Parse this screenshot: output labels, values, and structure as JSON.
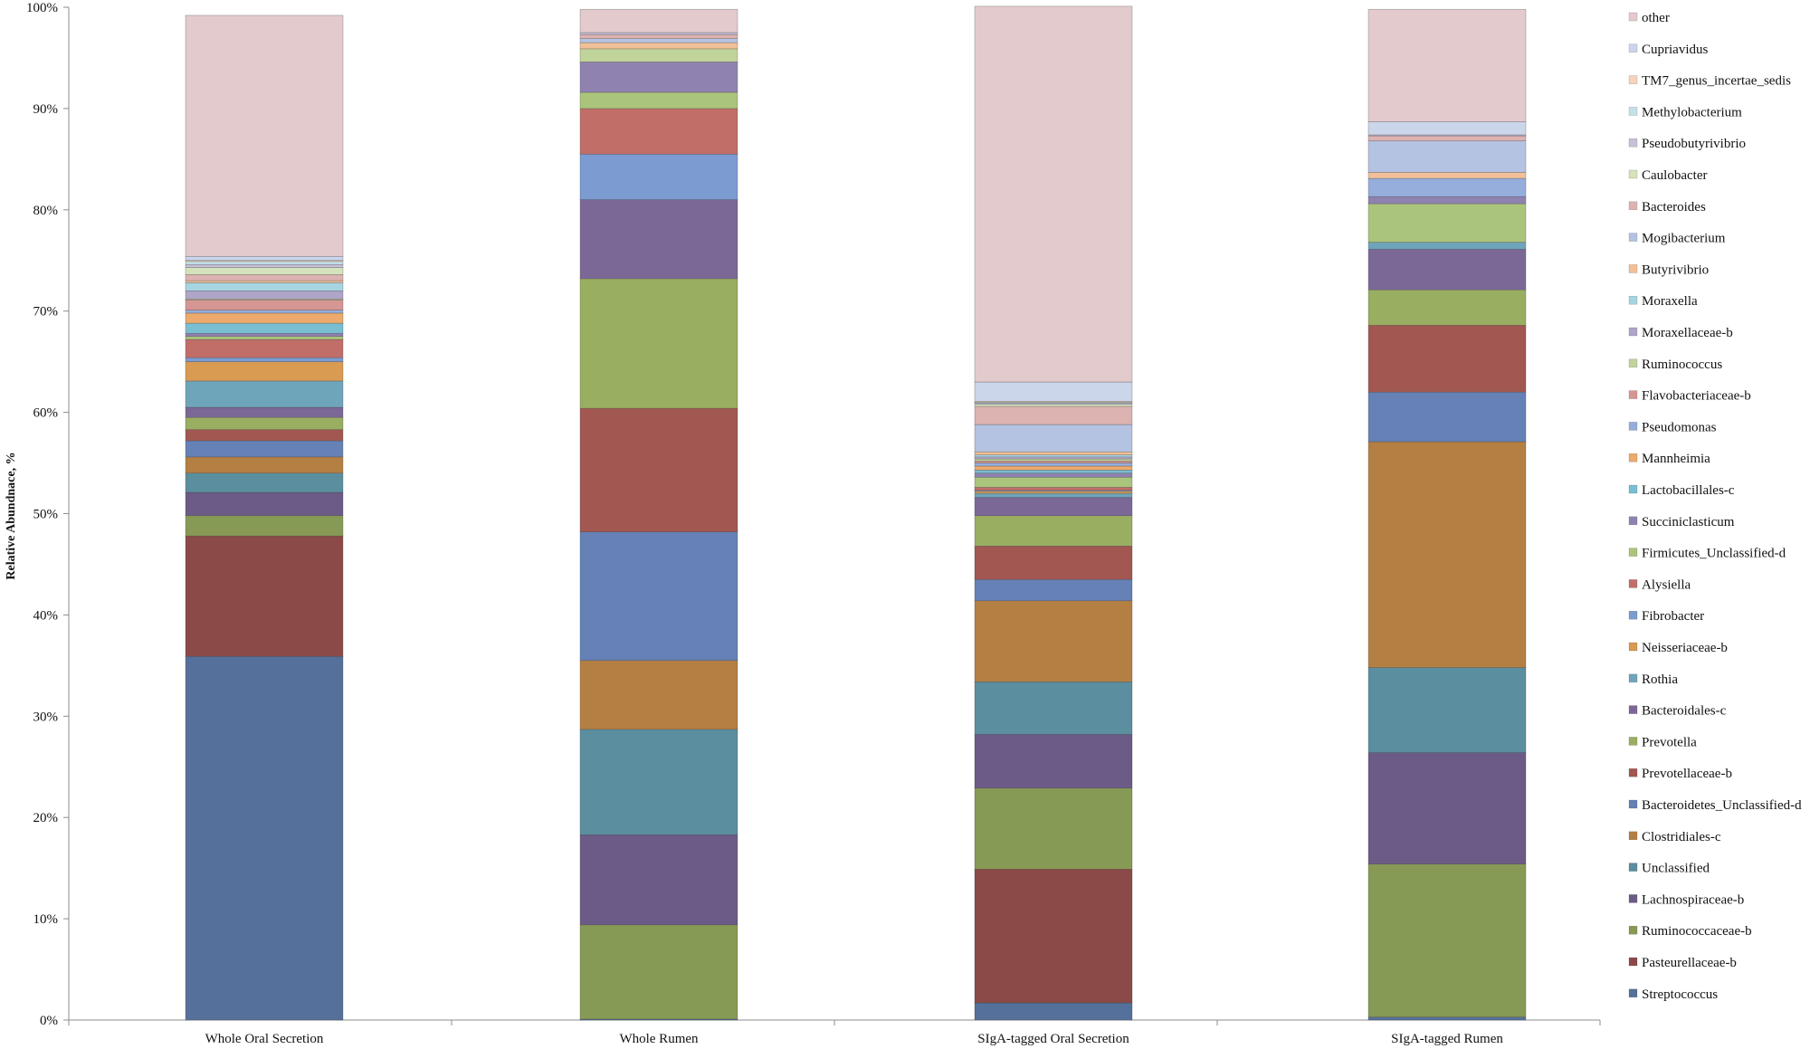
{
  "chart_data": {
    "type": "bar",
    "stacked": true,
    "ylabel": "Relative Abundnace, %",
    "xlabel": "",
    "ylim": [
      0,
      100
    ],
    "y_ticks": [
      "0%",
      "10%",
      "20%",
      "30%",
      "40%",
      "50%",
      "60%",
      "70%",
      "80%",
      "90%",
      "100%"
    ],
    "grid": false,
    "legend_position": "right",
    "categories": [
      "Whole Oral Secretion",
      "Whole Rumen",
      "SIgA-tagged Oral Secretion",
      "SIgA-tagged Rumen"
    ],
    "series": [
      {
        "name": "Streptococcus",
        "color": "#55709a",
        "values": [
          35.9,
          0.1,
          1.7,
          0.3
        ]
      },
      {
        "name": "Pasteurellaceae-b",
        "color": "#8b4a47",
        "values": [
          11.9,
          0.0,
          13.2,
          0.0
        ]
      },
      {
        "name": "Ruminococcaceae-b",
        "color": "#879a55",
        "values": [
          2.0,
          9.3,
          8.0,
          15.1
        ]
      },
      {
        "name": "Lachnospiraceae-b",
        "color": "#6c5b86",
        "values": [
          2.3,
          8.9,
          5.3,
          11.0
        ]
      },
      {
        "name": "Unclassified",
        "color": "#5b8e9e",
        "values": [
          1.9,
          10.4,
          5.2,
          8.4
        ]
      },
      {
        "name": "Clostridiales-c",
        "color": "#b47f43",
        "values": [
          1.6,
          6.8,
          8.0,
          22.3
        ]
      },
      {
        "name": "Bacteroidetes_Unclassified-d",
        "color": "#6581b5",
        "values": [
          1.6,
          12.7,
          2.1,
          4.9
        ]
      },
      {
        "name": "Prevotellaceae-b",
        "color": "#a25751",
        "values": [
          1.1,
          12.2,
          3.3,
          6.6
        ]
      },
      {
        "name": "Prevotella",
        "color": "#9aae62",
        "values": [
          1.2,
          12.8,
          3.0,
          3.5
        ]
      },
      {
        "name": "Bacteroidales-c",
        "color": "#7c6897",
        "values": [
          1.0,
          7.8,
          1.8,
          4.0
        ]
      },
      {
        "name": "Rothia",
        "color": "#6fa5ba",
        "values": [
          2.6,
          0.0,
          0.4,
          0.7
        ]
      },
      {
        "name": "Neisseriaceae-b",
        "color": "#d99a52",
        "values": [
          1.9,
          0.0,
          0.2,
          0.0
        ]
      },
      {
        "name": "Fibrobacter",
        "color": "#7b9bd1",
        "values": [
          0.4,
          4.5,
          0.1,
          0.0
        ]
      },
      {
        "name": "Alysiella",
        "color": "#c16e69",
        "values": [
          1.8,
          4.5,
          0.3,
          0.0
        ]
      },
      {
        "name": "Firmicutes_Unclassified-d",
        "color": "#abc47c",
        "values": [
          0.3,
          1.6,
          1.0,
          3.8
        ]
      },
      {
        "name": "Succiniclasticum",
        "color": "#9082b0",
        "values": [
          0.3,
          3.0,
          0.4,
          0.7
        ]
      },
      {
        "name": "Lactobacillales-c",
        "color": "#79bed1",
        "values": [
          1.0,
          0.0,
          0.3,
          0.0
        ]
      },
      {
        "name": "Mannheimia",
        "color": "#ecaa6c",
        "values": [
          1.0,
          0.0,
          0.4,
          0.0
        ]
      },
      {
        "name": "Pseudomonas",
        "color": "#95aedb",
        "values": [
          0.3,
          0.0,
          0.3,
          1.8
        ]
      },
      {
        "name": "Flavobacteriaceae-b",
        "color": "#d69693",
        "values": [
          1.0,
          0.0,
          0.2,
          0.0
        ]
      },
      {
        "name": "Ruminococcus",
        "color": "#c0d39b",
        "values": [
          0.1,
          1.3,
          0.2,
          0.0
        ]
      },
      {
        "name": "Moraxellaceae-b",
        "color": "#b0a4c8",
        "values": [
          0.8,
          0.0,
          0.2,
          0.0
        ]
      },
      {
        "name": "Moraxella",
        "color": "#a6d5e1",
        "values": [
          0.8,
          0.0,
          0.2,
          0.0
        ]
      },
      {
        "name": "Butyrivibrio",
        "color": "#f2c098",
        "values": [
          0.2,
          0.6,
          0.3,
          0.6
        ]
      },
      {
        "name": "Mogibacterium",
        "color": "#b4c3e1",
        "values": [
          0.0,
          0.4,
          2.7,
          3.1
        ]
      },
      {
        "name": "Bacteroides",
        "color": "#ddb3b1",
        "values": [
          0.6,
          0.4,
          1.8,
          0.5
        ]
      },
      {
        "name": "Caulobacter",
        "color": "#d5e3bd",
        "values": [
          0.7,
          0.0,
          0.2,
          0.0
        ]
      },
      {
        "name": "Pseudobutyrivibrio",
        "color": "#c8c0d9",
        "values": [
          0.3,
          0.2,
          0.1,
          0.1
        ]
      },
      {
        "name": "Methylobacterium",
        "color": "#c5e0e8",
        "values": [
          0.3,
          0.0,
          0.1,
          0.0
        ]
      },
      {
        "name": "TM7_genus_incertae_sedis",
        "color": "#f6d3bb",
        "values": [
          0.1,
          0.0,
          0.1,
          0.0
        ]
      },
      {
        "name": "Cupriavidus",
        "color": "#ccd6ea",
        "values": [
          0.4,
          0.0,
          1.9,
          1.3
        ]
      },
      {
        "name": "other",
        "color": "#e3cbcd",
        "values": [
          23.8,
          2.3,
          37.1,
          11.1
        ]
      }
    ]
  }
}
